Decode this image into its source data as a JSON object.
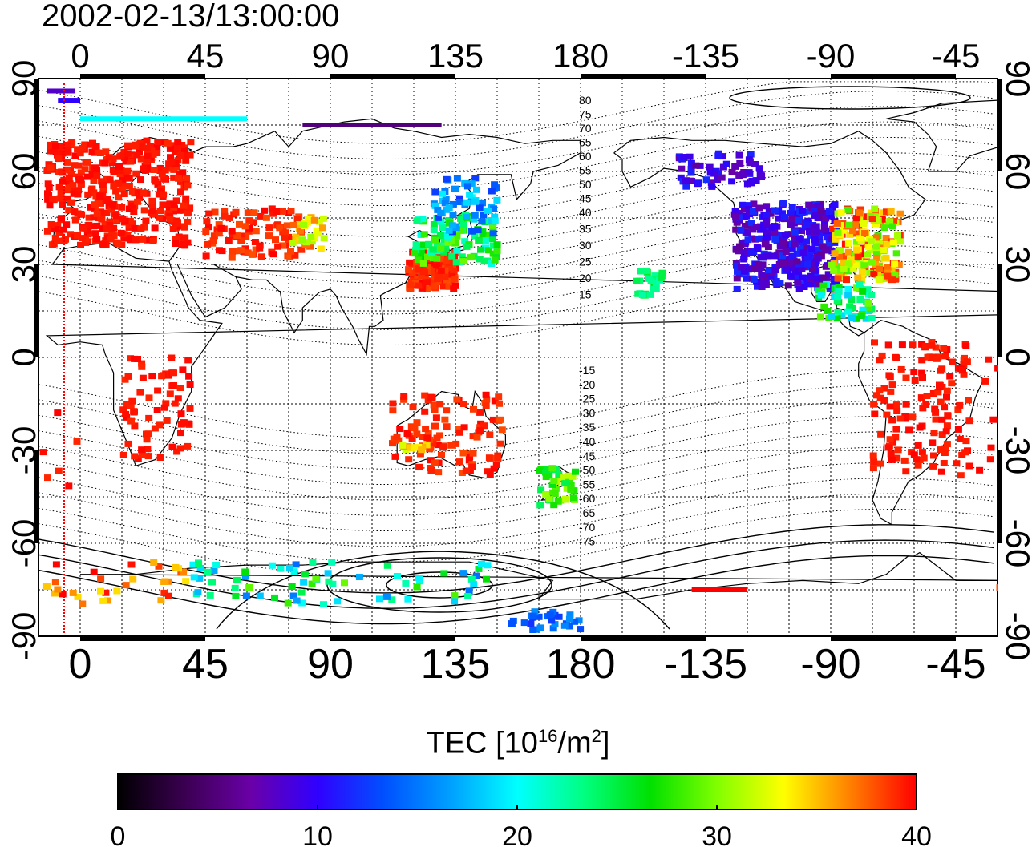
{
  "title": "2002-02-13/13:00:00",
  "top_lon_labels": [
    "0",
    "45",
    "90",
    "135",
    "180",
    "-135",
    "-90",
    "-45"
  ],
  "bottom_lon_labels": [
    "0",
    "45",
    "90",
    "135",
    "180",
    "-135",
    "-90",
    "-45"
  ],
  "left_lat_labels": [
    "90",
    "60",
    "30",
    "0",
    "-30",
    "-60",
    "-90"
  ],
  "right_lat_labels": [
    "90",
    "60",
    "30",
    "0",
    "-30",
    "-60",
    "-90"
  ],
  "contour_labels": [
    "80",
    "75",
    "70",
    "65",
    "60",
    "55",
    "50",
    "45",
    "40",
    "35",
    "30",
    "25",
    "20",
    "15",
    "-15",
    "-20",
    "-25",
    "-30",
    "-35",
    "-40",
    "-45",
    "-50",
    "-55",
    "-60",
    "-65",
    "-70",
    "-75"
  ],
  "colorbar": {
    "title": "TEC  [10^16/m^2]",
    "title_main": "TEC  [10",
    "title_exp1": "16",
    "title_mid": "/m",
    "title_exp2": "2",
    "title_end": "]",
    "min": 0,
    "max": 40,
    "tick_labels": [
      "0",
      "10",
      "20",
      "30",
      "40"
    ],
    "colors": [
      "#000000",
      "#3a0050",
      "#6a00a8",
      "#3000ff",
      "#0050ff",
      "#00a0ff",
      "#00ffff",
      "#00ff80",
      "#00e000",
      "#80ff00",
      "#ffff00",
      "#ff8000",
      "#ff0000"
    ]
  },
  "map_data": {
    "projection": "equirectangular",
    "lon_range": [
      -15,
      330
    ],
    "lat_range": [
      -90,
      90
    ],
    "grid": true,
    "gridline_spacing_deg": 15,
    "tec_regions": [
      {
        "region": "Europe",
        "tec": 40
      },
      {
        "region": "Middle East / Central Asia",
        "tec": 40
      },
      {
        "region": "East Asia",
        "tec": 40
      },
      {
        "region": "Japan",
        "tec": 20
      },
      {
        "region": "North America west/central",
        "tec": 10
      },
      {
        "region": "North America east",
        "tec": 40
      },
      {
        "region": "Australia",
        "tec": 40
      },
      {
        "region": "South America",
        "tec": 40
      },
      {
        "region": "Africa",
        "tec": 40
      },
      {
        "region": "Antarctica",
        "tec": 22
      }
    ]
  }
}
